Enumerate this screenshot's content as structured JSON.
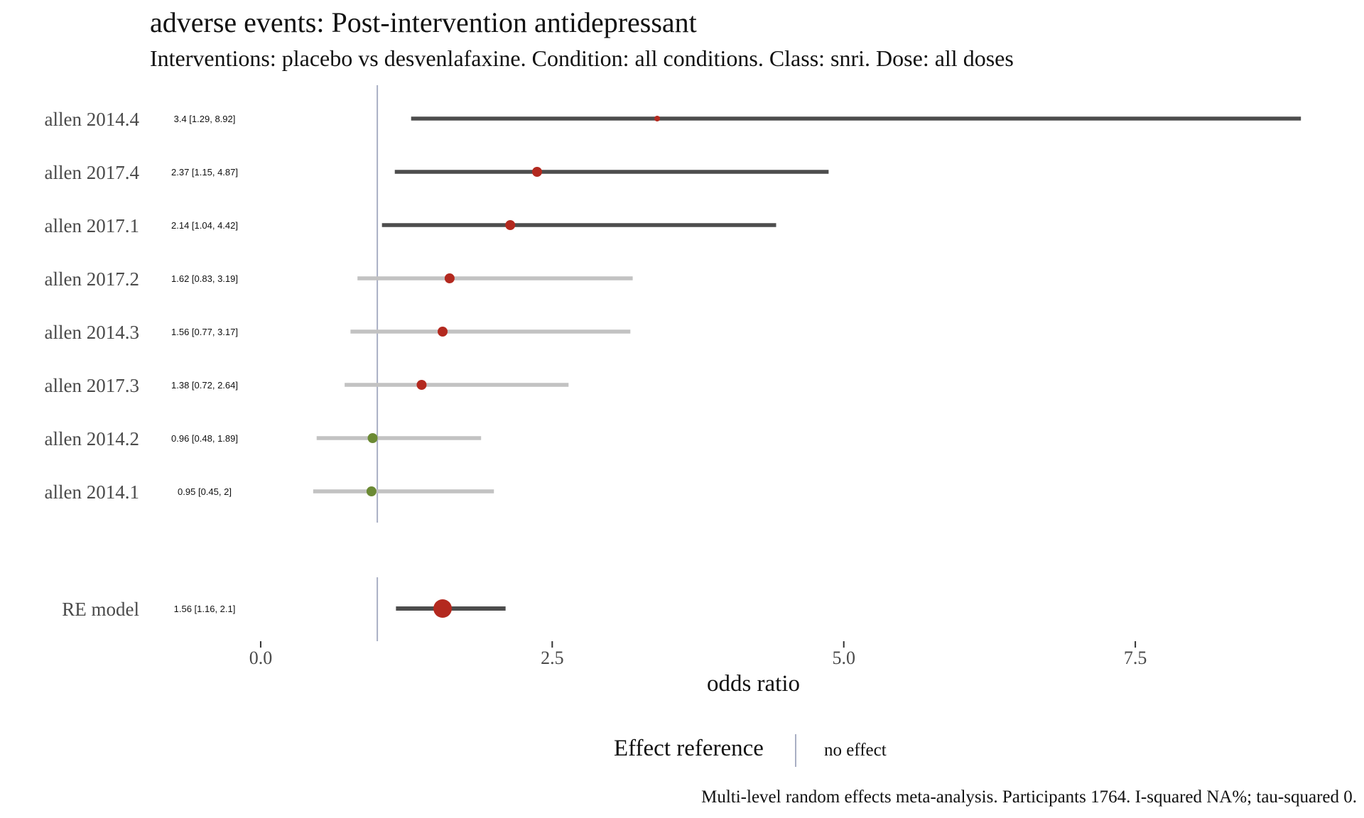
{
  "chart_data": {
    "type": "forest",
    "title": "adverse events: Post-intervention antidepressant",
    "subtitle": "Interventions: placebo vs desvenlafaxine. Condition: all conditions. Class: snri. Dose: all doses",
    "xlabel": "odds ratio",
    "xlim": [
      -0.95,
      9.4
    ],
    "x_ticks": [
      "0.0",
      "2.5",
      "5.0",
      "7.5"
    ],
    "x_tick_values": [
      0,
      2.5,
      5.0,
      7.5
    ],
    "reference_value": 1,
    "studies": [
      {
        "label": "allen 2014.4",
        "ci_text": "3.4 [1.29, 8.92]",
        "estimate": 3.4,
        "lower": 1.29,
        "upper": 8.92,
        "significant": true,
        "point_color": "#b3291f",
        "point_size": 4
      },
      {
        "label": "allen 2017.4",
        "ci_text": "2.37 [1.15, 4.87]",
        "estimate": 2.37,
        "lower": 1.15,
        "upper": 4.87,
        "significant": true,
        "point_color": "#b3291f",
        "point_size": 7
      },
      {
        "label": "allen 2017.1",
        "ci_text": "2.14 [1.04, 4.42]",
        "estimate": 2.14,
        "lower": 1.04,
        "upper": 4.42,
        "significant": true,
        "point_color": "#b3291f",
        "point_size": 7
      },
      {
        "label": "allen 2017.2",
        "ci_text": "1.62 [0.83, 3.19]",
        "estimate": 1.62,
        "lower": 0.83,
        "upper": 3.19,
        "significant": false,
        "point_color": "#b3291f",
        "point_size": 7
      },
      {
        "label": "allen 2014.3",
        "ci_text": "1.56 [0.77, 3.17]",
        "estimate": 1.56,
        "lower": 0.77,
        "upper": 3.17,
        "significant": false,
        "point_color": "#b3291f",
        "point_size": 7
      },
      {
        "label": "allen 2017.3",
        "ci_text": "1.38 [0.72, 2.64]",
        "estimate": 1.38,
        "lower": 0.72,
        "upper": 2.64,
        "significant": false,
        "point_color": "#b3291f",
        "point_size": 7
      },
      {
        "label": "allen 2014.2",
        "ci_text": "0.96 [0.48, 1.89]",
        "estimate": 0.96,
        "lower": 0.48,
        "upper": 1.89,
        "significant": false,
        "point_color": "#6b8a34",
        "point_size": 7
      },
      {
        "label": "allen 2014.1",
        "ci_text": "0.95 [0.45, 2]",
        "estimate": 0.95,
        "lower": 0.45,
        "upper": 2.0,
        "significant": false,
        "point_color": "#6b8a34",
        "point_size": 7
      }
    ],
    "summary": {
      "label": "RE model",
      "ci_text": "1.56 [1.16, 2.1]",
      "estimate": 1.56,
      "lower": 1.16,
      "upper": 2.1,
      "significant": true,
      "point_color": "#b3291f",
      "point_size": 13
    },
    "colors": {
      "significant_ci": "#4d4d4d",
      "nonsignificant_ci": "#c2c2c2",
      "reference_line": "#a9afc4"
    },
    "legend": {
      "title": "Effect reference",
      "label": "no effect",
      "position": "bottom"
    },
    "caption": "Multi-level random effects meta-analysis. Participants 1764. I-squared NA%; tau-squared 0."
  }
}
